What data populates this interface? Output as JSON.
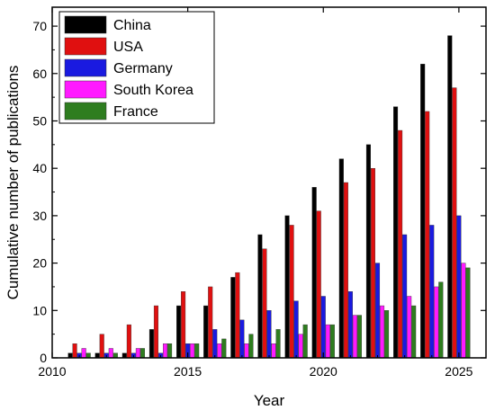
{
  "chart_data": {
    "type": "bar",
    "title": "",
    "xlabel": "Year",
    "ylabel": "Cumulative number of publications",
    "xlim": [
      2010,
      2026
    ],
    "ylim": [
      0,
      74
    ],
    "x_ticks": [
      2010,
      2015,
      2020,
      2025
    ],
    "y_ticks": [
      0,
      10,
      20,
      30,
      40,
      50,
      60,
      70
    ],
    "legend_position": "top-left",
    "grid": false,
    "categories": [
      2011,
      2012,
      2013,
      2014,
      2015,
      2016,
      2017,
      2018,
      2019,
      2020,
      2021,
      2022,
      2023,
      2024,
      2025
    ],
    "series": [
      {
        "name": "China",
        "color": "#000000",
        "values": [
          1,
          1,
          1,
          6,
          11,
          11,
          17,
          26,
          30,
          36,
          42,
          45,
          53,
          62,
          68
        ]
      },
      {
        "name": "USA",
        "color": "#e01010",
        "values": [
          3,
          5,
          7,
          11,
          14,
          15,
          18,
          23,
          28,
          31,
          37,
          40,
          48,
          52,
          57
        ]
      },
      {
        "name": "Germany",
        "color": "#1a1ae0",
        "values": [
          1,
          1,
          1,
          1,
          3,
          6,
          8,
          10,
          12,
          13,
          14,
          20,
          26,
          28,
          30
        ]
      },
      {
        "name": "South Korea",
        "color": "#ff1aff",
        "values": [
          2,
          2,
          2,
          3,
          3,
          3,
          3,
          3,
          5,
          7,
          9,
          11,
          13,
          15,
          20
        ]
      },
      {
        "name": "France",
        "color": "#2e7d1f",
        "values": [
          1,
          1,
          2,
          3,
          3,
          4,
          5,
          6,
          7,
          7,
          9,
          10,
          11,
          16,
          19
        ]
      }
    ]
  }
}
